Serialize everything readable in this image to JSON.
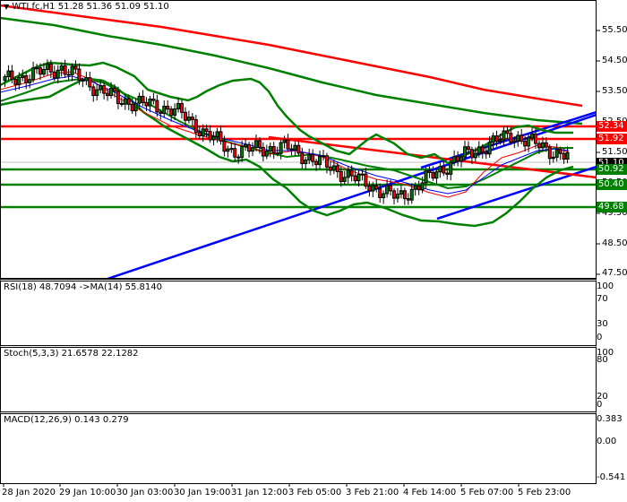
{
  "main": {
    "title": "WTI.fc,H1  51.28 51.36 51.09 51.10",
    "symbol": "WTI.fc",
    "timeframe": "H1",
    "ohlc": {
      "open": "51.28",
      "high": "51.36",
      "low": "51.09",
      "close": "51.10"
    },
    "y_ticks": [
      "55.50",
      "54.50",
      "53.50",
      "52.50",
      "51.50",
      "50.50",
      "49.50",
      "48.50",
      "47.50"
    ],
    "price_tags": [
      {
        "label": "52.34",
        "color": "#ff0000"
      },
      {
        "label": "51.92",
        "color": "#ff0000"
      },
      {
        "label": "51.10",
        "color": "#000000"
      },
      {
        "label": "50.92",
        "color": "#008000"
      },
      {
        "label": "50.40",
        "color": "#008000"
      },
      {
        "label": "49.68",
        "color": "#008000"
      }
    ]
  },
  "rsi": {
    "title": "RSI(18) 48.7094  ->MA(14) 55.8140",
    "y_ticks": [
      "100",
      "70",
      "30",
      "0"
    ]
  },
  "stoch": {
    "title": "Stoch(5,3,3) 21.6578 22.1282",
    "y_ticks": [
      "100",
      "80",
      "20",
      "0"
    ]
  },
  "macd": {
    "title": "MACD(12,26,9) 0.143 0.279",
    "y_ticks": [
      "0.383",
      "0.00",
      "-0.541"
    ]
  },
  "x_axis": {
    "labels": [
      "28 Jan 2020",
      "29 Jan 10:00",
      "30 Jan 03:00",
      "30 Jan 19:00",
      "31 Jan 12:00",
      "3 Feb 05:00",
      "3 Feb 21:00",
      "4 Feb 14:00",
      "5 Feb 07:00",
      "5 Feb 23:00"
    ]
  },
  "chart_data": [
    {
      "type": "candlestick",
      "title": "WTI.fc,H1",
      "ylim": [
        47.3,
        56.0
      ],
      "y_ticks": [
        55.5,
        54.5,
        53.5,
        52.5,
        51.5,
        50.5,
        49.5,
        48.5,
        47.5
      ],
      "x_labels": [
        "28 Jan 2020",
        "29 Jan 10:00",
        "30 Jan 03:00",
        "30 Jan 19:00",
        "31 Jan 12:00",
        "3 Feb 05:00",
        "3 Feb 21:00",
        "4 Feb 14:00",
        "5 Feb 07:00",
        "5 Feb 23:00"
      ],
      "last_ohlc": {
        "open": 51.28,
        "high": 51.36,
        "low": 51.09,
        "close": 51.1
      },
      "horizontal_levels": {
        "resistance_red": [
          52.34,
          51.92
        ],
        "support_green": [
          50.92,
          50.4,
          49.68
        ]
      },
      "close_path_approx": [
        {
          "x": "28 Jan 2020",
          "y": 53.5
        },
        {
          "x": "29 Jan 10:00",
          "y": 53.9
        },
        {
          "x": "30 Jan 03:00",
          "y": 52.9
        },
        {
          "x": "30 Jan 19:00",
          "y": 52.6
        },
        {
          "x": "31 Jan 12:00",
          "y": 51.3
        },
        {
          "x": "3 Feb 05:00",
          "y": 51.4
        },
        {
          "x": "3 Feb 21:00",
          "y": 50.6
        },
        {
          "x": "4 Feb 14:00",
          "y": 49.8
        },
        {
          "x": "5 Feb 07:00",
          "y": 51.0
        },
        {
          "x": "5 Feb 23:00",
          "y": 51.8
        },
        {
          "x": "last",
          "y": 51.1
        }
      ],
      "overlays": [
        "Bollinger Bands (green)",
        "MA 200 (red)",
        "MA 100 (green)",
        "Fast MAs (red/blue/green thin)",
        "Blue trend channel lines",
        "Red trend line"
      ]
    },
    {
      "type": "line",
      "title": "RSI(18)",
      "ylim": [
        0,
        100
      ],
      "levels": [
        70,
        30
      ],
      "series": [
        {
          "name": "RSI(18)",
          "last": 48.7094,
          "color": "#1e90ff"
        },
        {
          "name": "MA(14)",
          "last": 55.814,
          "color": "#ff0000"
        }
      ]
    },
    {
      "type": "line",
      "title": "Stoch(5,3,3)",
      "ylim": [
        0,
        100
      ],
      "levels": [
        80,
        20
      ],
      "series": [
        {
          "name": "%K",
          "last": 21.6578,
          "color": "#20b2aa"
        },
        {
          "name": "%D",
          "last": 22.1282,
          "color": "#ff0000",
          "style": "dashed"
        }
      ]
    },
    {
      "type": "bar",
      "title": "MACD(12,26,9)",
      "ylim": [
        -0.541,
        0.383
      ],
      "series": [
        {
          "name": "MACD",
          "last": 0.143,
          "color": "#c0c0c0"
        },
        {
          "name": "Signal",
          "last": 0.279,
          "color": "#ff0000",
          "style": "dotted"
        }
      ]
    }
  ]
}
